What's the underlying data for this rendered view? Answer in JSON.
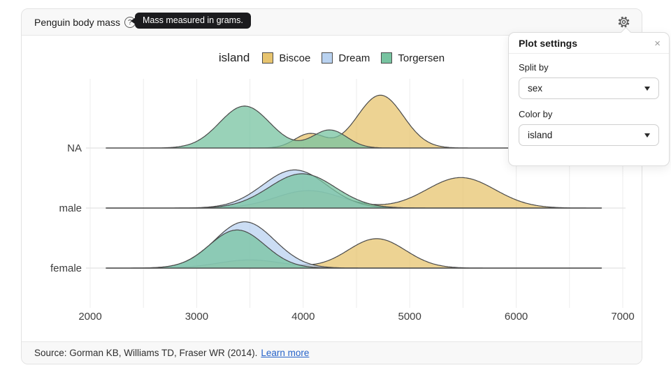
{
  "header": {
    "title": "Penguin body mass",
    "help_glyph": "?",
    "tooltip_text": "Mass measured in grams."
  },
  "settings_panel": {
    "title": "Plot settings",
    "close_glyph": "×",
    "fields": [
      {
        "label": "Split by",
        "value": "sex"
      },
      {
        "label": "Color by",
        "value": "island"
      }
    ]
  },
  "footer": {
    "source_text": "Source: Gorman KB, Williams TD, Fraser WR (2014).",
    "link_label": "Learn more"
  },
  "chart_data": {
    "type": "area",
    "variant": "ridgeline-density",
    "legend": {
      "title": "island",
      "position": "top-center",
      "entries": [
        {
          "label": "Biscoe",
          "color": "#E7C46F"
        },
        {
          "label": "Dream",
          "color": "#B9D2F0"
        },
        {
          "label": "Torgersen",
          "color": "#77C3A0"
        }
      ]
    },
    "x_axis": {
      "min": 2000,
      "max": 7000,
      "ticks": [
        2000,
        3000,
        4000,
        5000,
        6000,
        7000
      ],
      "minor_grid_step": 500,
      "unit": "grams"
    },
    "domain": [
      2150,
      6800
    ],
    "grid": true,
    "rows": [
      {
        "label": "NA",
        "series": [
          {
            "name": "Biscoe",
            "peaks": [
              {
                "x": 4060,
                "sd": 140,
                "height": 0.26
              },
              {
                "x": 4725,
                "sd": 215,
                "height": 0.97
              }
            ]
          },
          {
            "name": "Torgersen",
            "peaks": [
              {
                "x": 3450,
                "sd": 235,
                "height": 0.77
              },
              {
                "x": 4250,
                "sd": 160,
                "height": 0.33
              }
            ]
          }
        ]
      },
      {
        "label": "male",
        "series": [
          {
            "name": "Biscoe",
            "peaks": [
              {
                "x": 4050,
                "sd": 310,
                "height": 0.32
              },
              {
                "x": 5480,
                "sd": 320,
                "height": 0.56
              }
            ]
          },
          {
            "name": "Dream",
            "peaks": [
              {
                "x": 3920,
                "sd": 300,
                "height": 0.7
              }
            ]
          },
          {
            "name": "Torgersen",
            "peaks": [
              {
                "x": 3990,
                "sd": 310,
                "height": 0.63
              }
            ]
          }
        ]
      },
      {
        "label": "female",
        "series": [
          {
            "name": "Biscoe",
            "peaks": [
              {
                "x": 3500,
                "sd": 300,
                "height": 0.15
              },
              {
                "x": 4690,
                "sd": 270,
                "height": 0.54
              }
            ]
          },
          {
            "name": "Dream",
            "peaks": [
              {
                "x": 3450,
                "sd": 280,
                "height": 0.85
              }
            ]
          },
          {
            "name": "Torgersen",
            "peaks": [
              {
                "x": 3380,
                "sd": 260,
                "height": 0.7
              }
            ]
          }
        ]
      }
    ]
  }
}
